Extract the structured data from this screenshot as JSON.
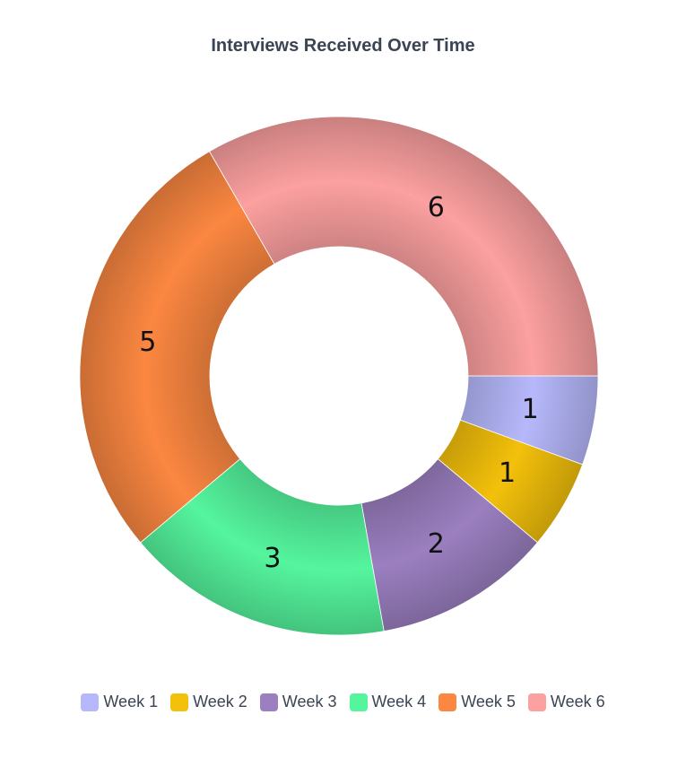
{
  "chart_data": {
    "type": "pie",
    "title": "Interviews Received Over Time",
    "categories": [
      "Week 1",
      "Week 2",
      "Week 3",
      "Week 4",
      "Week 5",
      "Week 6"
    ],
    "values": [
      1,
      1,
      2,
      3,
      5,
      6
    ],
    "colors": [
      "#b6b8fb",
      "#f3c00b",
      "#9b7fc0",
      "#55f59e",
      "#fb8741",
      "#fca0a0"
    ],
    "legend_position": "bottom",
    "donut": true
  }
}
